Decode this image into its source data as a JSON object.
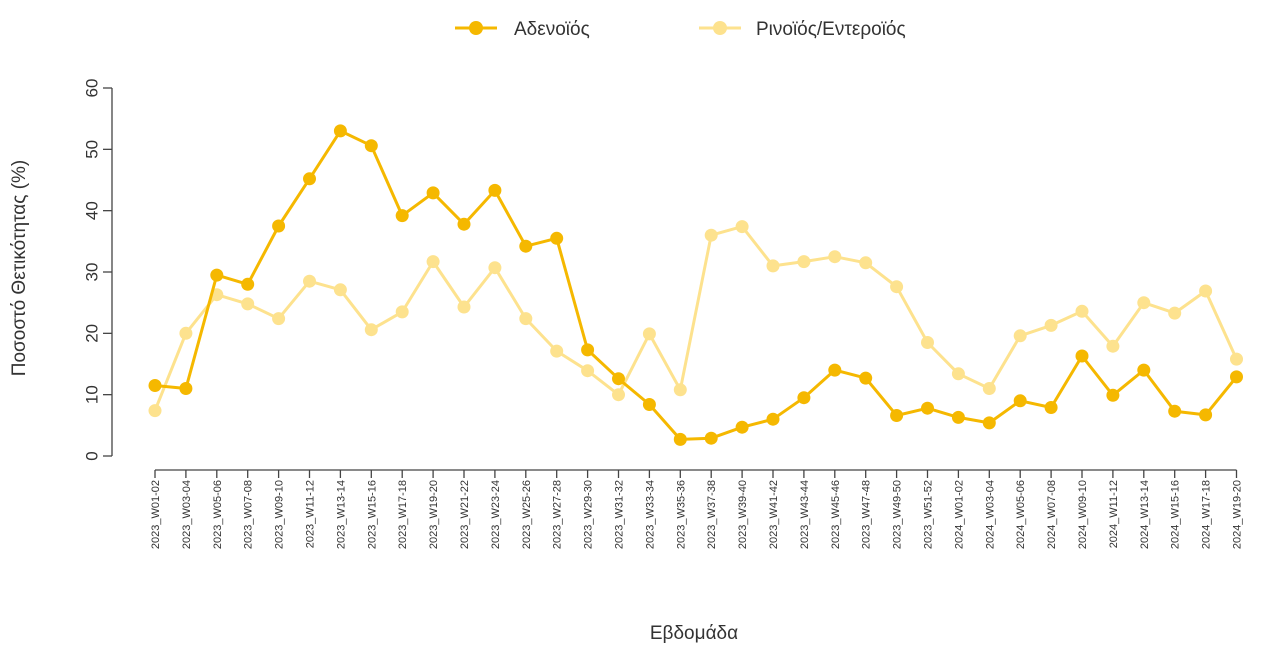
{
  "chart_data": {
    "type": "line",
    "xlabel": "Εβδομάδα",
    "ylabel": "Ποσοστό Θετικότητας (%)",
    "ylim": [
      0,
      60
    ],
    "yticks": [
      "0",
      "10",
      "20",
      "30",
      "40",
      "50",
      "60"
    ],
    "grid": false,
    "legend_position": "top-center",
    "categories": [
      "2023_W01-02",
      "2023_W03-04",
      "2023_W05-06",
      "2023_W07-08",
      "2023_W09-10",
      "2023_W11-12",
      "2023_W13-14",
      "2023_W15-16",
      "2023_W17-18",
      "2023_W19-20",
      "2023_W21-22",
      "2023_W23-24",
      "2023_W25-26",
      "2023_W27-28",
      "2023_W29-30",
      "2023_W31-32",
      "2023_W33-34",
      "2023_W35-36",
      "2023_W37-38",
      "2023_W39-40",
      "2023_W41-42",
      "2023_W43-44",
      "2023_W45-46",
      "2023_W47-48",
      "2023_W49-50",
      "2023_W51-52",
      "2024_W01-02",
      "2024_W03-04",
      "2024_W05-06",
      "2024_W07-08",
      "2024_W09-10",
      "2024_W11-12",
      "2024_W13-14",
      "2024_W15-16",
      "2024_W17-18",
      "2024_W19-20"
    ],
    "series": [
      {
        "name": "Αδενοϊός",
        "color": "#F5B800",
        "values": [
          11.5,
          11.0,
          29.5,
          28.0,
          37.5,
          45.2,
          53.0,
          50.6,
          39.2,
          42.9,
          37.8,
          43.3,
          34.2,
          35.5,
          17.3,
          12.6,
          8.4,
          2.7,
          2.9,
          4.7,
          6.0,
          9.5,
          14.0,
          12.7,
          6.6,
          7.8,
          6.3,
          5.4,
          9.0,
          7.9,
          16.3,
          9.9,
          14.0,
          7.3,
          6.7,
          12.9
        ]
      },
      {
        "name": "Ρινοϊός/Εντεροϊός",
        "color": "#FDE28E",
        "values": [
          7.4,
          20.0,
          26.3,
          24.8,
          22.4,
          28.5,
          27.1,
          20.6,
          23.5,
          31.7,
          24.3,
          30.7,
          22.4,
          17.1,
          13.9,
          10.0,
          19.9,
          10.8,
          36.0,
          37.4,
          31.0,
          31.7,
          32.5,
          31.5,
          27.6,
          18.5,
          13.4,
          11.0,
          19.6,
          21.3,
          23.6,
          17.9,
          25.0,
          23.3,
          26.9,
          15.8
        ]
      }
    ]
  }
}
